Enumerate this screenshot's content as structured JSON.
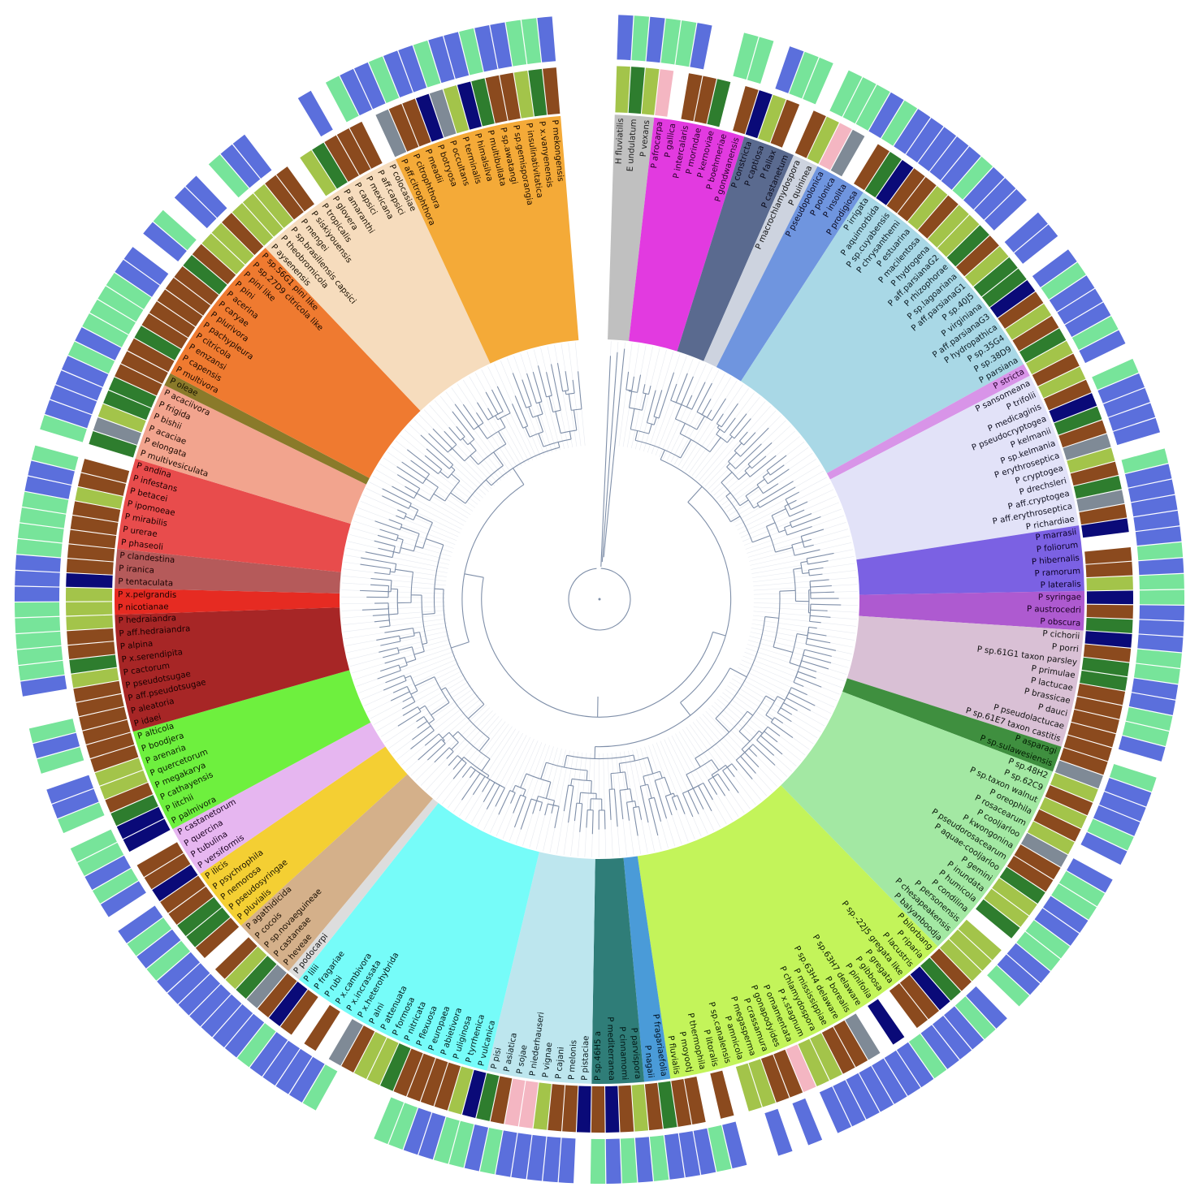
{
  "colors": {
    "branch": "#7f8fa9",
    "background": "#ffffff",
    "ring_palette": {
      "blue": "#5b6fdc",
      "green": "#77e49a",
      "brown": "#8b4a1e",
      "darkgreen": "#2e7d2e",
      "olive": "#a3c44a",
      "navy": "#0a0a78",
      "gray": "#7f8a96",
      "pink": "#f4b6c2"
    }
  },
  "clades": [
    {
      "color": "#c0c0c0",
      "text_color": "#222222",
      "taxa": [
        "H fluviatilis",
        "E undulatum",
        "P vexans"
      ]
    },
    {
      "color": "#e23ae0",
      "text_color": "#2a002a",
      "taxa": [
        "P afrocarpa",
        "P gallica",
        "P intercalaris",
        "P morindae",
        "P kernoviae",
        "P boehmeriae",
        "P gondwanensis"
      ]
    },
    {
      "color": "#5a6a8f",
      "text_color": "#0a0a1a",
      "taxa": [
        "P constricta",
        "P captiosa",
        "P fallax",
        "P castanetum"
      ]
    },
    {
      "color": "#cdd3df",
      "text_color": "#111111",
      "taxa": [
        "P macrochlamydospora",
        "P quininea"
      ]
    },
    {
      "color": "#6f95df",
      "text_color": "#0a0a20",
      "taxa": [
        "P pseudopolonica",
        "P polonica",
        "P insolita",
        "P prodigiosa"
      ]
    },
    {
      "color": "#a9d8e6",
      "text_color": "#0a1a22",
      "taxa": [
        "P irrigata",
        "P aquimorbida",
        "P sp.cuyabensis",
        "P chrysanthemi",
        "P estuarina",
        "P macilentosa",
        "P hydrogena",
        "P aff.parsianaG2",
        "P rhizophorae",
        "P sp.lagoariana",
        "P aff.parsianaG1",
        "P sp.40J5",
        "P virginiana",
        "P aff.parsianaG3",
        "P hydropathica",
        "P sp.35G4",
        "P sp.38D9",
        "P parsiana"
      ]
    },
    {
      "color": "#d894e8",
      "text_color": "#2a0030",
      "taxa": [
        "P stricta"
      ]
    },
    {
      "color": "#e2e2f8",
      "text_color": "#111122",
      "taxa": [
        "P sansomeana",
        "P trifolii",
        "P medicaginis",
        "P pseudocryptogea",
        "P kelmanii",
        "P sp.kelmania",
        "P erythroseptica",
        "P cryptogea",
        "P drechsleri",
        "P aff.cryptogea",
        "P aff.erythroseptica",
        "P richardiae"
      ]
    },
    {
      "color": "#7b61e3",
      "text_color": "#0a0024",
      "taxa": [
        "P marrasii",
        "P foliorum",
        "P hibernalis",
        "P ramorum",
        "P lateralis"
      ]
    },
    {
      "color": "#ae5ad0",
      "text_color": "#1a0024",
      "taxa": [
        "P syringae",
        "P austrocedri",
        "P obscura"
      ]
    },
    {
      "color": "#d9c0d5",
      "text_color": "#111111",
      "taxa": [
        "P cichorii",
        "P porri",
        "P sp.61G1 taxon parsley",
        "P primulae",
        "P lactucae",
        "P brassicae",
        "P dauci",
        "P pseudolactucae",
        "P sp.61E7 taxon castitis"
      ]
    },
    {
      "color": "#3f8f3f",
      "text_color": "#001a00",
      "taxa": [
        "P asparagi",
        "P sp.sulawesiensis"
      ]
    },
    {
      "color": "#a3e8a3",
      "text_color": "#0a1a0a",
      "taxa": [
        "P sp.48H2",
        "P sp.62C9",
        "P sp.taxon walnut",
        "P oreophila",
        "P rosacearum",
        "P cooljarloo",
        "P kwongonina",
        "P pseudorosacearum",
        "P aquae-cooljarloo",
        "P gemini",
        "P inundata",
        "P humicola",
        "P condilina",
        "P personensis",
        "P chesapeakensis",
        "P balyanboodja"
      ]
    },
    {
      "color": "#c3f45a",
      "text_color": "#0a1a00",
      "taxa": [
        "P bilorbang",
        "P riparia",
        "P lacustris",
        "P sp.-22J5 gregata like",
        "P gregata",
        "P gibbosa",
        "P pinifolia",
        "P sp.63H7 delaware",
        "P borealis",
        "P sp.63H4 delaware",
        "P mississippiae",
        "P chlamydospora",
        "P x.stagnum",
        "P ornamentata",
        "P gonapodyides",
        "P crassamura",
        "P megasperma",
        "P amnicola",
        "P sp.canalensis",
        "P litoralis",
        "P thermophila",
        "P moyootj",
        "P fluvialis"
      ]
    },
    {
      "color": "#4a9bd8",
      "text_color": "#001020",
      "taxa": [
        "P fragariaefolia",
        "P nagaii"
      ]
    },
    {
      "color": "#2f7d78",
      "text_color": "#001614",
      "taxa": [
        "P parvispora",
        "P cinnamomi",
        "P mediterranea",
        "P sp.46H5 a"
      ]
    },
    {
      "color": "#bde6ee",
      "text_color": "#0a1a1e",
      "taxa": [
        "P pistaciae",
        "P melonis",
        "P cajani",
        "P vignae",
        "P niederhauseri",
        "P sojae",
        "P asiatica",
        "P pisi"
      ]
    },
    {
      "color": "#76fcf9",
      "text_color": "#001a1a",
      "taxa": [
        "P vulcanica",
        "P tyrrhenica",
        "P uliginosa",
        "P abietivora",
        "P europaea",
        "P flexuosa",
        "P nitricata",
        "P formosa",
        "P attenuata",
        "P alni",
        "P x.heterohybrida",
        "P x.incrassata",
        "P x.cambivora",
        "P rubi",
        "P fragariae",
        "P lilii"
      ]
    },
    {
      "color": "#dddddd",
      "text_color": "#111111",
      "taxa": [
        "P podocarpi"
      ]
    },
    {
      "color": "#d4b08a",
      "text_color": "#1a0e00",
      "taxa": [
        "P heveae",
        "P castaneae",
        "P sp.novaeguineae",
        "P cocois",
        "P agathidicida"
      ]
    },
    {
      "color": "#f4cf33",
      "text_color": "#1a1400",
      "taxa": [
        "P pluvialis",
        "P pseudosyringae",
        "P nemorosa",
        "P psychrophila",
        "P ilicis"
      ]
    },
    {
      "color": "#e6b6f0",
      "text_color": "#1a0020",
      "taxa": [
        "P versiformis",
        "P tubulina",
        "P quercina",
        "P castanetorum"
      ]
    },
    {
      "color": "#6ef03e",
      "text_color": "#0a1a00",
      "taxa": [
        "P palmivora",
        "P litchii",
        "P cathayensis",
        "P megakarya",
        "P quercetorum",
        "P arenaria",
        "P boodjera",
        "P alticola"
      ]
    },
    {
      "color": "#a72626",
      "text_color": "#1a0000",
      "taxa": [
        "P idaei",
        "P aleatoria",
        "P aff.pseudotsugae",
        "P pseudotsugae",
        "P cactorum",
        "P x.serendipita",
        "P alpina",
        "P aff.hedraiandra",
        "P hedraiandra"
      ]
    },
    {
      "color": "#e62b22",
      "text_color": "#1a0000",
      "taxa": [
        "P nicotianae",
        "P x.pelgrandis"
      ]
    },
    {
      "color": "#b55a5a",
      "text_color": "#1a0000",
      "taxa": [
        "P tentaculata",
        "P iranica",
        "P clandestina"
      ]
    },
    {
      "color": "#e84c4c",
      "text_color": "#1a0000",
      "taxa": [
        "P phaseoli",
        "P urerae",
        "P mirabilis",
        "P ipomoeae",
        "P betacei",
        "P infestans",
        "P andina"
      ]
    },
    {
      "color": "#f2a48e",
      "text_color": "#1a0800",
      "taxa": [
        "P multivesiculata",
        "P elongata",
        "P acaciae",
        "P bishii",
        "P frigida",
        "P acaciivora"
      ]
    },
    {
      "color": "#8a7a2a",
      "text_color": "#141000",
      "taxa": [
        "P oleae"
      ]
    },
    {
      "color": "#ef7a30",
      "text_color": "#1a0a00",
      "taxa": [
        "P multivora",
        "P capensis",
        "P emzansi",
        "P citricola",
        "P pachypleura",
        "P plurivora",
        "P caryae",
        "P acerina",
        "P pini",
        "P pini like",
        "P sp.27D9 citricola like",
        "P sp.56G1 pini like"
      ]
    },
    {
      "color": "#f6dcbd",
      "text_color": "#1a1000",
      "taxa": [
        "P aysenensis",
        "P theobromicola",
        "P sp.brasiliensis capsici",
        "P mengei",
        "P siskiyouensis",
        "P tropicalis",
        "P glovera",
        "P amaranthi",
        "P capsici",
        "P mexicana",
        "P aff.capsici",
        "P colocasiae"
      ]
    },
    {
      "color": "#f4aa38",
      "text_color": "#1a0c00",
      "taxa": [
        "P aff.citrophthora",
        "P citrophthora",
        "P meadii",
        "P botryosa",
        "P occultans",
        "P terminalis",
        "P himalsilva",
        "P multibullata",
        "P sp.awatangi",
        "P sp.gemisporangia",
        "P insulinativitatica",
        "P x.vanyenensis",
        "P mekongensis"
      ]
    }
  ]
}
